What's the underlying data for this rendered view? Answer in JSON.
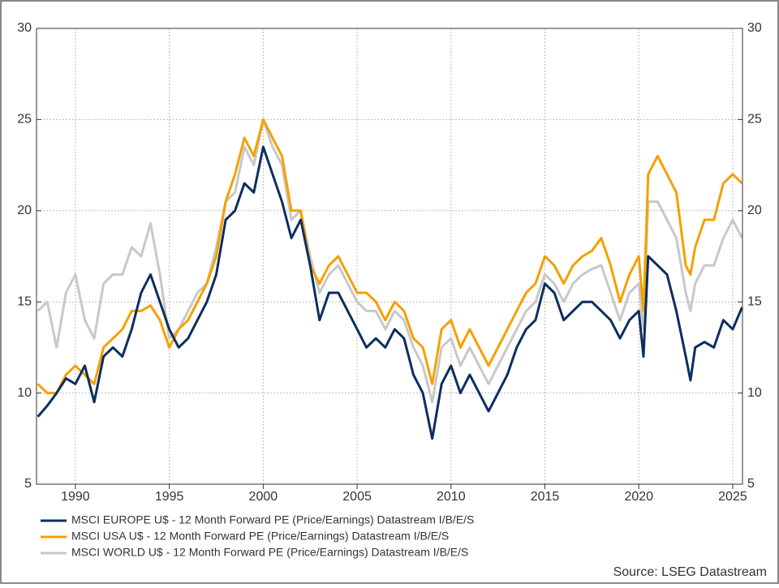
{
  "chart_data": {
    "type": "line",
    "x": [
      1988,
      1988.5,
      1989,
      1989.5,
      1990,
      1990.5,
      1991,
      1991.5,
      1992,
      1992.5,
      1993,
      1993.5,
      1994,
      1994.5,
      1995,
      1995.5,
      1996,
      1996.5,
      1997,
      1997.5,
      1998,
      1998.5,
      1999,
      1999.5,
      2000,
      2000.5,
      2001,
      2001.5,
      2002,
      2002.5,
      2003,
      2003.5,
      2004,
      2004.5,
      2005,
      2005.5,
      2006,
      2006.5,
      2007,
      2007.5,
      2008,
      2008.5,
      2009,
      2009.5,
      2010,
      2010.5,
      2011,
      2011.5,
      2012,
      2012.5,
      2013,
      2013.5,
      2014,
      2014.5,
      2015,
      2015.5,
      2016,
      2016.5,
      2017,
      2017.5,
      2018,
      2018.5,
      2019,
      2019.5,
      2020,
      2020.25,
      2020.5,
      2021,
      2021.5,
      2022,
      2022.5,
      2022.75,
      2023,
      2023.5,
      2024,
      2024.5,
      2025,
      2025.5
    ],
    "series": [
      {
        "name": "MSCI EUROPE U$ - 12 Month Forward PE (Price/Earnings) Datastream I/B/E/S",
        "color": "#0b2f5e",
        "values": [
          8.7,
          9.3,
          10.0,
          10.8,
          10.5,
          11.5,
          9.5,
          12.0,
          12.5,
          12.0,
          13.5,
          15.5,
          16.5,
          15.0,
          13.5,
          12.5,
          13.0,
          14.0,
          15.0,
          16.5,
          19.5,
          20.0,
          21.5,
          21.0,
          23.5,
          22.0,
          20.5,
          18.5,
          19.5,
          17.0,
          14.0,
          15.5,
          15.5,
          14.5,
          13.5,
          12.5,
          13.0,
          12.5,
          13.5,
          13.0,
          11.0,
          10.0,
          7.5,
          10.5,
          11.5,
          10.0,
          11.0,
          10.0,
          9.0,
          10.0,
          11.0,
          12.5,
          13.5,
          14.0,
          16.0,
          15.5,
          14.0,
          14.5,
          15.0,
          15.0,
          14.5,
          14.0,
          13.0,
          14.0,
          14.5,
          12.0,
          17.5,
          17.0,
          16.5,
          14.5,
          12.0,
          10.7,
          12.5,
          12.8,
          12.5,
          14.0,
          13.5,
          14.7
        ]
      },
      {
        "name": "MSCI USA U$ - 12 Month Forward PE (Price/Earnings) Datastream I/B/E/S",
        "color": "#f5a000",
        "values": [
          10.5,
          10.0,
          10.0,
          11.0,
          11.5,
          11.0,
          10.5,
          12.5,
          13.0,
          13.5,
          14.5,
          14.5,
          14.8,
          14.0,
          12.5,
          13.5,
          14.0,
          15.0,
          16.0,
          17.5,
          20.5,
          22.0,
          24.0,
          23.0,
          25.0,
          24.0,
          23.0,
          20.0,
          20.0,
          17.0,
          16.0,
          17.0,
          17.5,
          16.5,
          15.5,
          15.5,
          15.0,
          14.0,
          15.0,
          14.5,
          13.0,
          12.5,
          10.5,
          13.5,
          14.0,
          12.5,
          13.5,
          12.5,
          11.5,
          12.5,
          13.5,
          14.5,
          15.5,
          16.0,
          17.5,
          17.0,
          16.0,
          17.0,
          17.5,
          17.8,
          18.5,
          17.0,
          15.0,
          16.5,
          17.5,
          14.5,
          22.0,
          23.0,
          22.0,
          21.0,
          17.0,
          16.5,
          18.0,
          19.5,
          19.5,
          21.5,
          22.0,
          21.5
        ]
      },
      {
        "name": "MSCI WORLD U$ - 12 Month Forward PE (Price/Earnings) Datastream I/B/E/S",
        "color": "#c8c8c8",
        "values": [
          14.5,
          15.0,
          12.5,
          15.5,
          16.5,
          14.0,
          13.0,
          16.0,
          16.5,
          16.5,
          18.0,
          17.5,
          19.3,
          16.5,
          13.0,
          13.5,
          14.5,
          15.5,
          16.0,
          18.0,
          20.5,
          21.0,
          23.5,
          22.5,
          25.0,
          23.5,
          22.5,
          19.5,
          20.0,
          17.5,
          15.5,
          16.5,
          17.0,
          16.0,
          15.0,
          14.5,
          14.5,
          13.5,
          14.5,
          14.0,
          12.5,
          11.5,
          9.5,
          12.5,
          13.0,
          11.5,
          12.5,
          11.5,
          10.5,
          11.5,
          12.5,
          13.5,
          14.5,
          15.0,
          16.5,
          16.0,
          15.0,
          16.0,
          16.5,
          16.8,
          17.0,
          15.5,
          14.0,
          15.5,
          16.0,
          13.5,
          20.5,
          20.5,
          19.5,
          18.5,
          15.5,
          14.5,
          16.0,
          17.0,
          17.0,
          18.5,
          19.5,
          18.5
        ]
      }
    ],
    "xlim": [
      1987.93,
      2025.52
    ],
    "xticks": [
      1990,
      1995,
      2000,
      2005,
      2010,
      2015,
      2020,
      2025
    ],
    "ylim": [
      5,
      30
    ],
    "yticks": [
      5,
      10,
      15,
      20,
      25,
      30
    ],
    "y2lim": [
      5,
      30
    ],
    "y2ticks": [
      5,
      10,
      15,
      20,
      25,
      30
    ],
    "grid": true,
    "legend": "bottom-left",
    "source": "Source: LSEG Datastream"
  }
}
